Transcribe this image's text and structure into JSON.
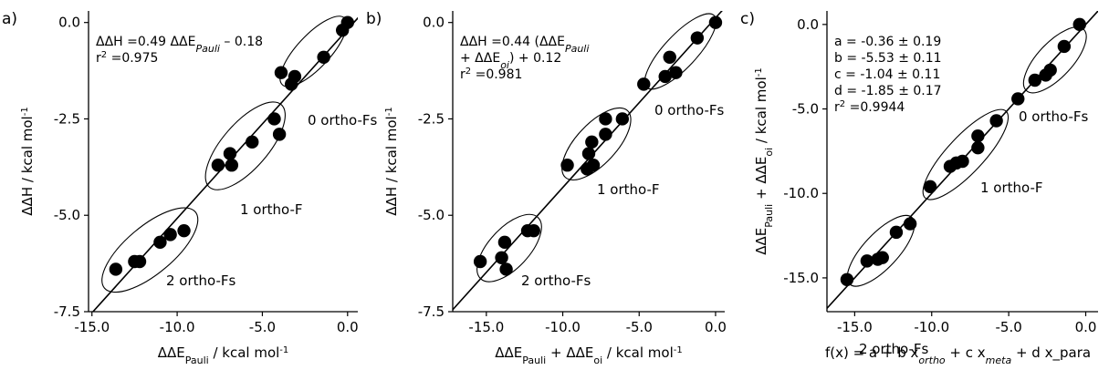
{
  "chart_data": [
    {
      "type": "scatter",
      "panel_label": "a)",
      "xlabel": "ΔΔE_Pauli / kcal mol-1",
      "ylabel": "ΔΔH / kcal mol-1",
      "xlim": [
        -15.2,
        0.6
      ],
      "ylim": [
        -7.5,
        0.3
      ],
      "xticks": [
        -15.0,
        -10.0,
        -5.0,
        0.0
      ],
      "xtick_labels": [
        "-15.0",
        "-10.0",
        "-5.0",
        "0.0"
      ],
      "yticks": [
        0.0,
        -2.5,
        -5.0,
        -7.5
      ],
      "ytick_labels": [
        "0.0",
        "-2.5",
        "-5.0",
        "-7.5"
      ],
      "annotation": [
        "ΔΔH =0.49 ΔΔE_Pauli – 0.18",
        "r² =0.975"
      ],
      "fit_line": {
        "slope": 0.49,
        "intercept": -0.18
      },
      "groups": [
        "0 ortho-Fs",
        "1 ortho-F",
        "2 ortho-Fs"
      ],
      "points": [
        {
          "x": 0.0,
          "y": 0.0
        },
        {
          "x": -0.3,
          "y": -0.2
        },
        {
          "x": -1.4,
          "y": -0.9
        },
        {
          "x": -3.1,
          "y": -1.4
        },
        {
          "x": -3.3,
          "y": -1.6
        },
        {
          "x": -3.9,
          "y": -1.3
        },
        {
          "x": -4.3,
          "y": -2.5
        },
        {
          "x": -4.0,
          "y": -2.9
        },
        {
          "x": -5.6,
          "y": -3.1
        },
        {
          "x": -6.9,
          "y": -3.4
        },
        {
          "x": -6.8,
          "y": -3.7
        },
        {
          "x": -7.6,
          "y": -3.7
        },
        {
          "x": -9.6,
          "y": -5.4
        },
        {
          "x": -10.4,
          "y": -5.5
        },
        {
          "x": -11.0,
          "y": -5.7
        },
        {
          "x": -12.2,
          "y": -6.2
        },
        {
          "x": -12.5,
          "y": -6.2
        },
        {
          "x": -13.6,
          "y": -6.4
        }
      ]
    },
    {
      "type": "scatter",
      "panel_label": "b)",
      "xlabel": "ΔΔE_Pauli + ΔΔE_oi / kcal mol-1",
      "ylabel": "ΔΔH / kcal mol-1",
      "xlim": [
        -17.2,
        0.6
      ],
      "ylim": [
        -7.5,
        0.3
      ],
      "xticks": [
        -15.0,
        -10.0,
        -5.0,
        0.0
      ],
      "xtick_labels": [
        "-15.0",
        "-10.0",
        "-5.0",
        "0.0"
      ],
      "yticks": [
        0.0,
        -2.5,
        -5.0,
        -7.5
      ],
      "ytick_labels": [
        "0.0",
        "-2.5",
        "-5.0",
        "-7.5"
      ],
      "annotation": [
        "ΔΔH =0.44 (ΔΔE_Pauli",
        "+ ΔΔE_oi) + 0.12",
        "r² =0.981"
      ],
      "fit_line": {
        "slope": 0.44,
        "intercept": 0.12
      },
      "groups": [
        "0 ortho-Fs",
        "1 ortho-F",
        "2 ortho-Fs"
      ],
      "points": [
        {
          "x": 0.0,
          "y": 0.0
        },
        {
          "x": -1.2,
          "y": -0.4
        },
        {
          "x": -2.6,
          "y": -1.3
        },
        {
          "x": -3.0,
          "y": -0.9
        },
        {
          "x": -3.3,
          "y": -1.4
        },
        {
          "x": -4.7,
          "y": -1.6
        },
        {
          "x": -6.1,
          "y": -2.5
        },
        {
          "x": -7.2,
          "y": -2.5
        },
        {
          "x": -7.2,
          "y": -2.9
        },
        {
          "x": -8.1,
          "y": -3.1
        },
        {
          "x": -8.3,
          "y": -3.4
        },
        {
          "x": -8.0,
          "y": -3.7
        },
        {
          "x": -8.4,
          "y": -3.8
        },
        {
          "x": -9.7,
          "y": -3.7
        },
        {
          "x": -11.9,
          "y": -5.4
        },
        {
          "x": -12.3,
          "y": -5.4
        },
        {
          "x": -13.8,
          "y": -5.7
        },
        {
          "x": -14.0,
          "y": -6.1
        },
        {
          "x": -13.7,
          "y": -6.4
        },
        {
          "x": -15.4,
          "y": -6.2
        }
      ]
    },
    {
      "type": "scatter",
      "panel_label": "c)",
      "xlabel": "f(x) = a + b x_ortho + c x_meta + d x_para",
      "ylabel": "ΔΔE_Pauli + ΔΔE_oi / kcal mol-1",
      "xlim": [
        -16.8,
        0.8
      ],
      "ylim": [
        -17.0,
        0.8
      ],
      "xticks": [
        -15.0,
        -10.0,
        -5.0,
        0.0
      ],
      "xtick_labels": [
        "-15.0",
        "-10.0",
        "-5.0",
        "0.0"
      ],
      "yticks": [
        0.0,
        -5.0,
        -10.0,
        -15.0
      ],
      "ytick_labels": [
        "0.0",
        "-5.0",
        "-10.0",
        "-15.0"
      ],
      "annotation": [
        "a = -0.36 ± 0.19",
        "b = -5.53 ± 0.11",
        "c = -1.04 ± 0.11",
        "d = -1.85 ± 0.17",
        "r² =0.9944"
      ],
      "fit_line": {
        "slope": 1.0,
        "intercept": 0.0
      },
      "groups": [
        "0 ortho-Fs",
        "1 ortho-F",
        "2 ortho-Fs"
      ],
      "points": [
        {
          "x": -0.4,
          "y": 0.0
        },
        {
          "x": -1.4,
          "y": -1.3
        },
        {
          "x": -2.3,
          "y": -2.7
        },
        {
          "x": -2.6,
          "y": -3.0
        },
        {
          "x": -3.3,
          "y": -3.3
        },
        {
          "x": -4.4,
          "y": -4.4
        },
        {
          "x": -5.8,
          "y": -5.7
        },
        {
          "x": -7.0,
          "y": -6.6
        },
        {
          "x": -7.0,
          "y": -7.3
        },
        {
          "x": -8.0,
          "y": -8.1
        },
        {
          "x": -8.4,
          "y": -8.2
        },
        {
          "x": -8.8,
          "y": -8.4
        },
        {
          "x": -10.1,
          "y": -9.6
        },
        {
          "x": -11.4,
          "y": -11.8
        },
        {
          "x": -12.3,
          "y": -12.3
        },
        {
          "x": -13.2,
          "y": -13.8
        },
        {
          "x": -13.5,
          "y": -13.9
        },
        {
          "x": -14.2,
          "y": -14.0
        },
        {
          "x": -15.5,
          "y": -15.1
        }
      ]
    }
  ]
}
